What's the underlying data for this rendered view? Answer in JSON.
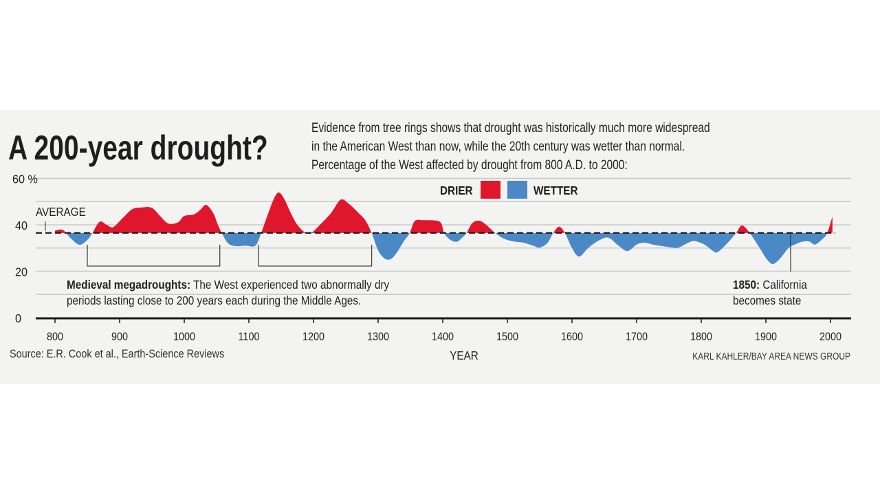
{
  "header": {
    "title": "A 200-year drought?",
    "subtitle_lines": [
      "Evidence from tree rings shows that drought was historically much more widespread",
      "in the American West than now, while the 20th century was wetter than normal.",
      "Percentage of the West affected by drought from 800 A.D. to 2000:"
    ]
  },
  "chart_data": {
    "type": "area",
    "xlabel": "YEAR",
    "ylabel": "",
    "xlim": [
      800,
      2000
    ],
    "ylim": [
      0,
      60
    ],
    "x_ticks": [
      "800",
      "900",
      "1000",
      "1100",
      "1200",
      "1300",
      "1400",
      "1500",
      "1600",
      "1700",
      "1800",
      "1900",
      "2000"
    ],
    "y_ticks": [
      {
        "value": 60,
        "label": "60 %"
      },
      {
        "value": 40,
        "label": "40"
      },
      {
        "value": 20,
        "label": "20"
      },
      {
        "value": 0,
        "label": "0"
      }
    ],
    "gridlines": [
      0,
      10,
      20,
      30,
      40,
      50,
      60
    ],
    "grid": true,
    "average": {
      "value": 36.5,
      "label": "AVERAGE"
    },
    "legend": {
      "position": "top-center",
      "items": [
        {
          "label": "DRIER",
          "color": "#e0172c"
        },
        {
          "label": "WETTER",
          "color": "#4b89c6"
        }
      ]
    },
    "series": [
      {
        "points": [
          [
            800,
            37.5
          ],
          [
            812,
            37.8
          ],
          [
            825,
            34
          ],
          [
            838,
            31.4
          ],
          [
            850,
            33.5
          ],
          [
            858,
            36.5
          ],
          [
            869,
            41.3
          ],
          [
            880,
            40
          ],
          [
            890,
            39
          ],
          [
            905,
            43
          ],
          [
            920,
            46.8
          ],
          [
            935,
            47.5
          ],
          [
            950,
            47.3
          ],
          [
            962,
            44
          ],
          [
            975,
            40.6
          ],
          [
            990,
            41
          ],
          [
            1000,
            43.8
          ],
          [
            1015,
            44.5
          ],
          [
            1025,
            46.5
          ],
          [
            1034,
            48.6
          ],
          [
            1045,
            45
          ],
          [
            1052,
            40
          ],
          [
            1058,
            36.5
          ],
          [
            1068,
            32
          ],
          [
            1080,
            30.8
          ],
          [
            1095,
            31
          ],
          [
            1110,
            31
          ],
          [
            1119,
            36.5
          ],
          [
            1130,
            45
          ],
          [
            1140,
            52
          ],
          [
            1147,
            53.9
          ],
          [
            1155,
            51
          ],
          [
            1165,
            45
          ],
          [
            1175,
            40
          ],
          [
            1188,
            36.5
          ],
          [
            1197,
            36.6
          ],
          [
            1210,
            40
          ],
          [
            1227,
            45
          ],
          [
            1242,
            50.8
          ],
          [
            1255,
            49
          ],
          [
            1270,
            45
          ],
          [
            1280,
            42
          ],
          [
            1290,
            36.5
          ],
          [
            1300,
            29
          ],
          [
            1310,
            25.5
          ],
          [
            1320,
            25.3
          ],
          [
            1330,
            28.5
          ],
          [
            1340,
            33
          ],
          [
            1349,
            36.5
          ],
          [
            1357,
            41.7
          ],
          [
            1370,
            42
          ],
          [
            1390,
            41.8
          ],
          [
            1398,
            40.5
          ],
          [
            1402,
            36.5
          ],
          [
            1412,
            33.5
          ],
          [
            1422,
            32.7
          ],
          [
            1430,
            34.5
          ],
          [
            1437,
            36.5
          ],
          [
            1445,
            40.5
          ],
          [
            1455,
            41.8
          ],
          [
            1465,
            40.5
          ],
          [
            1475,
            38
          ],
          [
            1481,
            36.5
          ],
          [
            1495,
            34
          ],
          [
            1510,
            32.8
          ],
          [
            1525,
            32.3
          ],
          [
            1540,
            31
          ],
          [
            1550,
            30.2
          ],
          [
            1562,
            32.2
          ],
          [
            1571,
            36.5
          ],
          [
            1580,
            39.2
          ],
          [
            1589,
            36.5
          ],
          [
            1600,
            30
          ],
          [
            1611,
            26.3
          ],
          [
            1625,
            30
          ],
          [
            1640,
            33
          ],
          [
            1656,
            34.5
          ],
          [
            1672,
            31
          ],
          [
            1686,
            28.7
          ],
          [
            1700,
            31.5
          ],
          [
            1712,
            32.3
          ],
          [
            1725,
            31.5
          ],
          [
            1740,
            30.8
          ],
          [
            1755,
            30.2
          ],
          [
            1765,
            30.2
          ],
          [
            1780,
            32.3
          ],
          [
            1790,
            33
          ],
          [
            1805,
            31.5
          ],
          [
            1817,
            29
          ],
          [
            1825,
            28.2
          ],
          [
            1840,
            32
          ],
          [
            1854,
            36.5
          ],
          [
            1863,
            39.7
          ],
          [
            1875,
            36.5
          ],
          [
            1890,
            30.2
          ],
          [
            1902,
            25
          ],
          [
            1911,
            23.1
          ],
          [
            1922,
            25.5
          ],
          [
            1935,
            30
          ],
          [
            1945,
            31.5
          ],
          [
            1956,
            32.7
          ],
          [
            1967,
            32.8
          ],
          [
            1976,
            31.5
          ],
          [
            1988,
            34
          ],
          [
            1995,
            36.5
          ],
          [
            2003,
            43.6
          ]
        ]
      }
    ],
    "annotations": {
      "megadroughts": {
        "bold": "Medieval megadroughts:",
        "line1": " The West experienced two abnormally dry",
        "line2": "periods lasting close to 200 years each during the Middle Ages.",
        "brackets": [
          [
            850,
            1055
          ],
          [
            1115,
            1290
          ]
        ]
      },
      "california": {
        "bold": "1850:",
        "line1": " California",
        "line2": "becomes state",
        "year": 1850
      }
    }
  },
  "footer": {
    "source": "Source: E.R. Cook et al., Earth-Science Reviews",
    "credit": "KARL KAHLER/BAY AREA NEWS GROUP"
  }
}
